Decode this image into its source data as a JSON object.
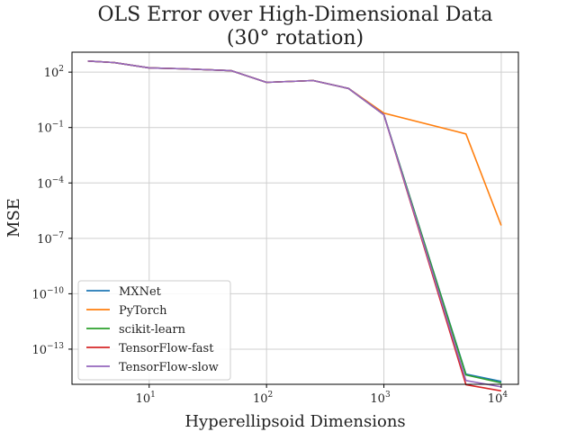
{
  "chart_data": {
    "type": "line",
    "title": [
      "OLS Error over High-Dimensional Data",
      "(30° rotation)"
    ],
    "xlabel": "Hyperellipsoid Dimensions",
    "ylabel": "MSE",
    "xscale": "log",
    "yscale": "log",
    "xlim": [
      2.2,
      14000
    ],
    "ylim": [
      1.25e-15,
      1200
    ],
    "x_ticks": [
      {
        "base": "10",
        "exp": "1",
        "value": 10
      },
      {
        "base": "10",
        "exp": "2",
        "value": 100
      },
      {
        "base": "10",
        "exp": "3",
        "value": 1000
      },
      {
        "base": "10",
        "exp": "4",
        "value": 10000
      }
    ],
    "y_ticks": [
      {
        "base": "10",
        "exp": "2",
        "value": 100
      },
      {
        "base": "10",
        "exp": "−1",
        "value": 0.1
      },
      {
        "base": "10",
        "exp": "−4",
        "value": 0.0001
      },
      {
        "base": "10",
        "exp": "−7",
        "value": 1e-07
      },
      {
        "base": "10",
        "exp": "−10",
        "value": 1e-10
      },
      {
        "base": "10",
        "exp": "−13",
        "value": 1e-13
      }
    ],
    "grid": true,
    "legend_position": "lower-left",
    "x": [
      3,
      5,
      10,
      20,
      50,
      100,
      250,
      500,
      1000,
      5000,
      10000
    ],
    "series": [
      {
        "name": "MXNet",
        "color": "#1f77b4",
        "values": [
          400,
          330,
          170,
          150,
          120,
          28,
          35,
          13,
          0.5,
          4.5e-15,
          1.8e-15
        ]
      },
      {
        "name": "PyTorch",
        "color": "#ff7f0e",
        "values": [
          400,
          330,
          170,
          150,
          120,
          28,
          35,
          13,
          0.6,
          0.045,
          5e-07
        ]
      },
      {
        "name": "scikit-learn",
        "color": "#2ca02c",
        "values": [
          400,
          330,
          170,
          150,
          120,
          28,
          35,
          13,
          0.5,
          4e-15,
          1.5e-15
        ]
      },
      {
        "name": "TensorFlow-fast",
        "color": "#d62728",
        "values": [
          400,
          330,
          170,
          150,
          120,
          28,
          35,
          13,
          0.5,
          1.2e-15,
          5.5e-16
        ]
      },
      {
        "name": "TensorFlow-slow",
        "color": "#9467bd",
        "values": [
          400,
          330,
          170,
          150,
          120,
          28,
          35,
          13,
          0.5,
          2e-15,
          9e-16
        ]
      }
    ]
  }
}
